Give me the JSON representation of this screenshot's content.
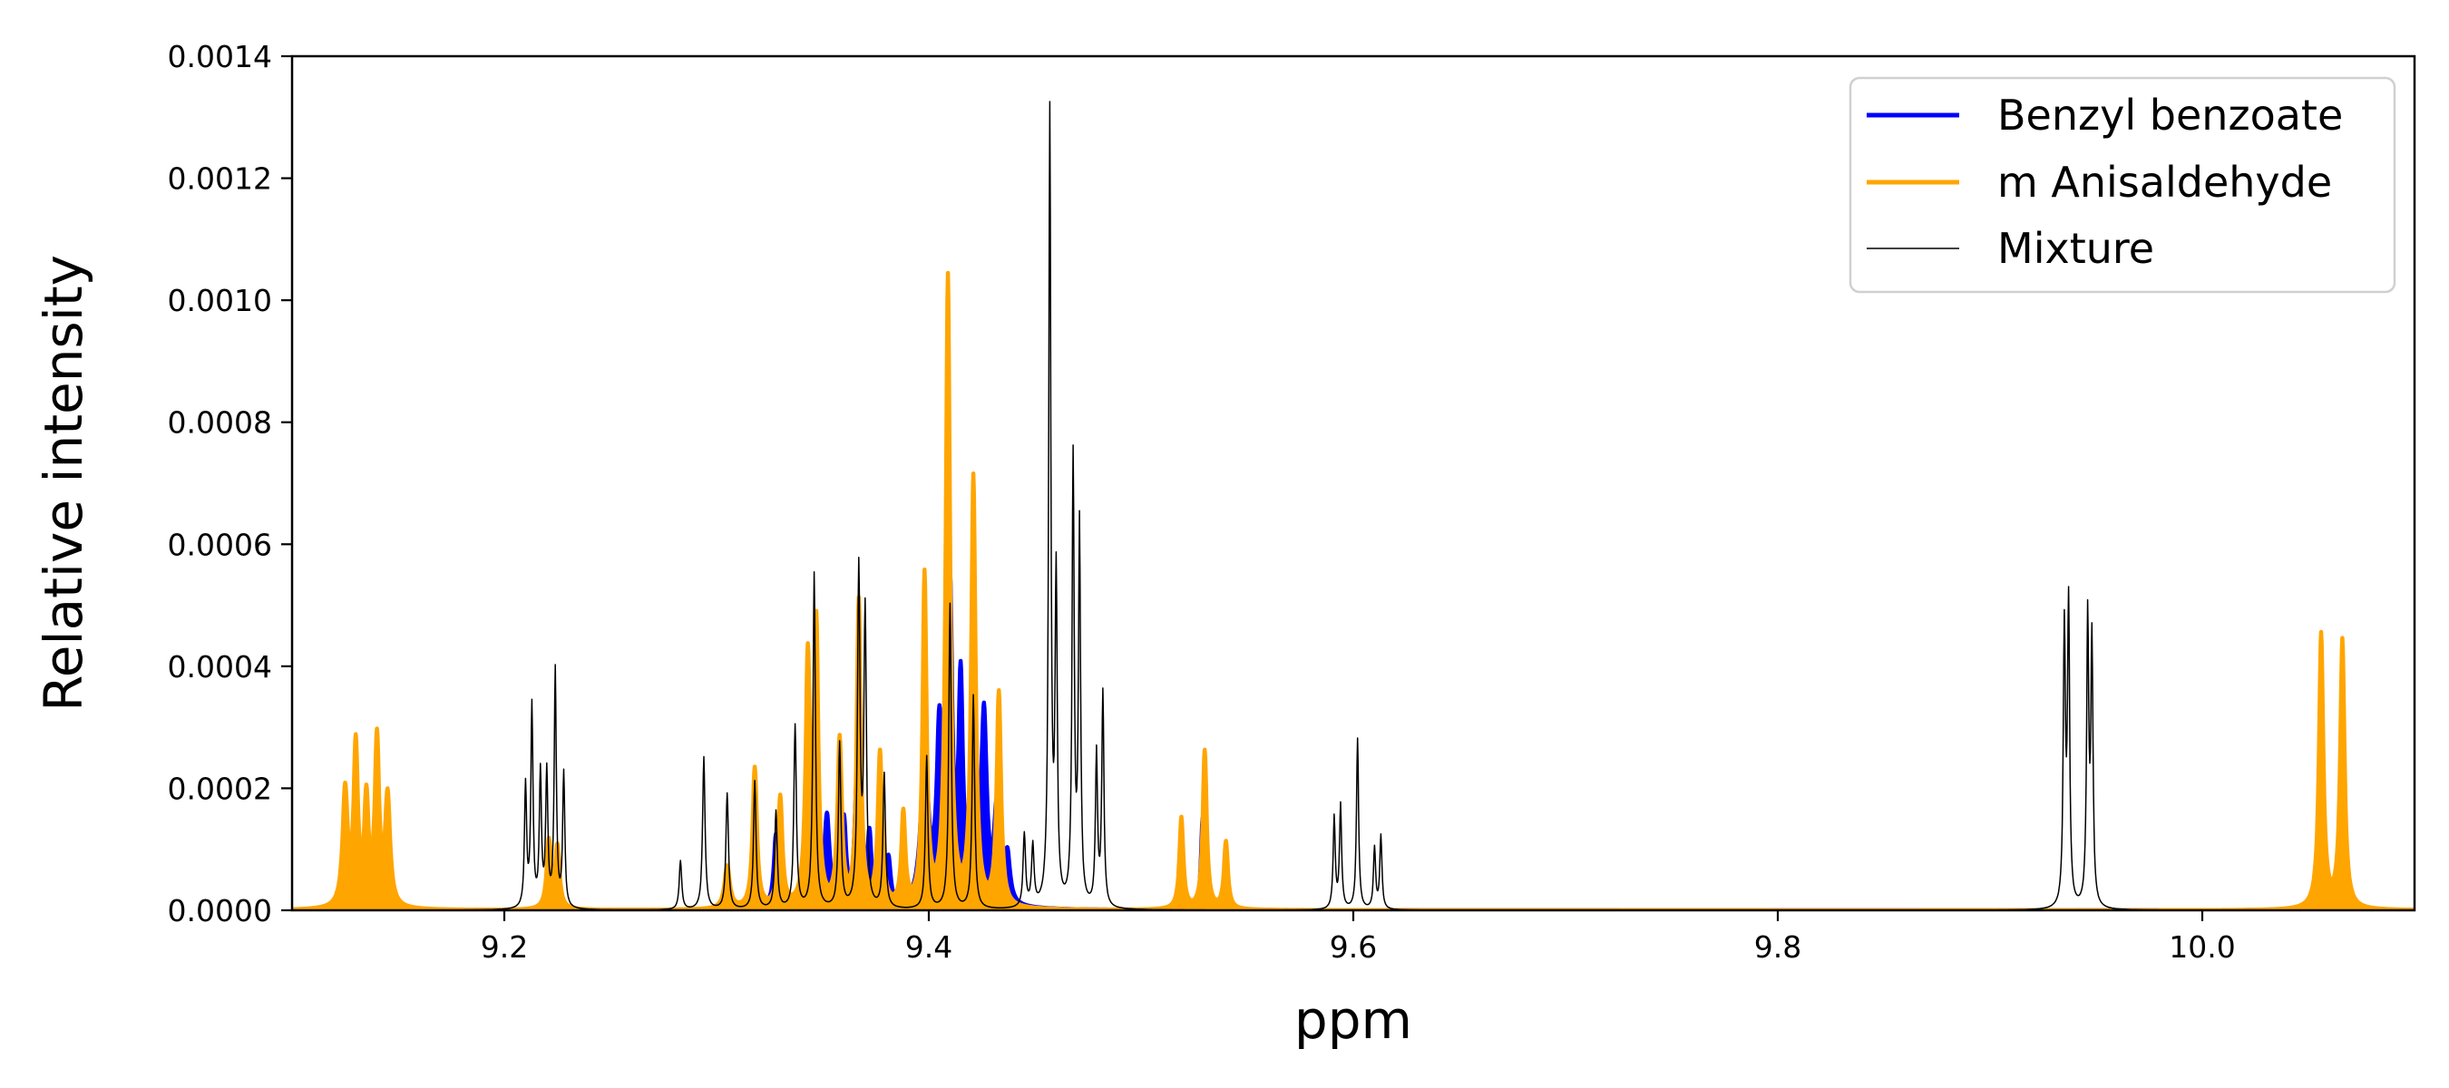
{
  "chart_data": {
    "type": "line",
    "title": "",
    "xlabel": "ppm",
    "ylabel": "Relative intensity",
    "xlim": [
      9.1,
      10.1
    ],
    "ylim": [
      0,
      0.0014
    ],
    "x_axis_direction": "ascending",
    "grid": false,
    "legend_position": "top-right",
    "x_ticks": [
      "9.2",
      "9.4",
      "9.6",
      "9.8",
      "10.0"
    ],
    "x_tick_values": [
      9.2,
      9.4,
      9.6,
      9.8,
      10.0
    ],
    "y_ticks": [
      "0.0000",
      "0.0002",
      "0.0004",
      "0.0006",
      "0.0008",
      "0.0010",
      "0.0012",
      "0.0014"
    ],
    "y_tick_values": [
      0,
      0.0002,
      0.0004,
      0.0006,
      0.0008,
      0.001,
      0.0012,
      0.0014
    ],
    "series": [
      {
        "name": "Benzyl benzoate",
        "color": "#0000ff",
        "filled": true,
        "peaks": [
          [
            9.222,
            2e-05,
            0.0012
          ],
          [
            9.305,
            3e-05,
            0.0015
          ],
          [
            9.318,
            0.00012,
            0.0012
          ],
          [
            9.328,
            0.00012,
            0.0012
          ],
          [
            9.342,
            0.00015,
            0.0015
          ],
          [
            9.352,
            0.00015,
            0.0015
          ],
          [
            9.36,
            0.00014,
            0.0012
          ],
          [
            9.366,
            0.0002,
            0.0012
          ],
          [
            9.372,
            0.00012,
            0.0012
          ],
          [
            9.381,
            8e-05,
            0.0012
          ],
          [
            9.398,
            0.00025,
            0.002
          ],
          [
            9.405,
            0.00028,
            0.0015
          ],
          [
            9.41,
            0.0005,
            0.0012
          ],
          [
            9.415,
            0.00035,
            0.0012
          ],
          [
            9.421,
            0.00037,
            0.0012
          ],
          [
            9.426,
            0.0003,
            0.0015
          ],
          [
            9.432,
            0.00015,
            0.0015
          ],
          [
            9.437,
            8e-05,
            0.0015
          ],
          [
            9.519,
            8e-05,
            0.0009
          ],
          [
            9.529,
            0.00015,
            0.0009
          ],
          [
            9.54,
            8e-05,
            0.0009
          ],
          [
            10.056,
            0.00033,
            0.0011
          ],
          [
            10.066,
            0.00028,
            0.0011
          ]
        ]
      },
      {
        "name": "m Anisaldehyde",
        "color": "#ffa500",
        "filled": true,
        "peaks": [
          [
            9.125,
            0.00019,
            0.0014
          ],
          [
            9.13,
            0.00026,
            0.0012
          ],
          [
            9.135,
            0.00017,
            0.0012
          ],
          [
            9.14,
            0.00027,
            0.0012
          ],
          [
            9.145,
            0.00018,
            0.0014
          ],
          [
            9.221,
            0.00011,
            0.0012
          ],
          [
            9.225,
            0.0001,
            0.0012
          ],
          [
            9.305,
            7e-05,
            0.0015
          ],
          [
            9.318,
            0.00023,
            0.0012
          ],
          [
            9.33,
            0.00018,
            0.0012
          ],
          [
            9.343,
            0.0004,
            0.0012
          ],
          [
            9.347,
            0.00045,
            0.0011
          ],
          [
            9.358,
            0.00027,
            0.0012
          ],
          [
            9.367,
            0.0005,
            0.0011
          ],
          [
            9.377,
            0.00025,
            0.0012
          ],
          [
            9.388,
            0.00015,
            0.0011
          ],
          [
            9.398,
            0.00054,
            0.0011
          ],
          [
            9.409,
            0.00103,
            0.0012
          ],
          [
            9.421,
            0.0007,
            0.0012
          ],
          [
            9.433,
            0.00035,
            0.0012
          ],
          [
            9.519,
            0.00015,
            0.0011
          ],
          [
            9.53,
            0.00026,
            0.0011
          ],
          [
            9.54,
            0.00011,
            0.0011
          ],
          [
            10.056,
            0.00045,
            0.0012
          ],
          [
            10.066,
            0.00044,
            0.0012
          ]
        ]
      },
      {
        "name": "Mixture",
        "color": "#000000",
        "filled": false,
        "peaks": [
          [
            9.21,
            0.0002,
            0.0006
          ],
          [
            9.213,
            0.00033,
            0.0006
          ],
          [
            9.217,
            0.00022,
            0.0006
          ],
          [
            9.22,
            0.00022,
            0.0006
          ],
          [
            9.224,
            0.00039,
            0.0006
          ],
          [
            9.228,
            0.00022,
            0.0006
          ],
          [
            9.283,
            8e-05,
            0.0007
          ],
          [
            9.294,
            0.00025,
            0.0007
          ],
          [
            9.305,
            0.00019,
            0.0007
          ],
          [
            9.318,
            0.00021,
            0.0007
          ],
          [
            9.328,
            0.00016,
            0.0007
          ],
          [
            9.337,
            0.0003,
            0.0007
          ],
          [
            9.346,
            0.00055,
            0.0007
          ],
          [
            9.358,
            0.00027,
            0.0007
          ],
          [
            9.367,
            0.00055,
            0.0007
          ],
          [
            9.37,
            0.00048,
            0.0007
          ],
          [
            9.379,
            0.00022,
            0.0007
          ],
          [
            9.399,
            0.00025,
            0.0007
          ],
          [
            9.41,
            0.0005,
            0.0007
          ],
          [
            9.421,
            0.00035,
            0.0007
          ],
          [
            9.445,
            0.00012,
            0.0007
          ],
          [
            9.449,
            0.0001,
            0.0007
          ],
          [
            9.457,
            0.0013,
            0.0006
          ],
          [
            9.46,
            0.00053,
            0.0006
          ],
          [
            9.468,
            0.00073,
            0.0006
          ],
          [
            9.471,
            0.00062,
            0.0006
          ],
          [
            9.479,
            0.00025,
            0.0006
          ],
          [
            9.482,
            0.00035,
            0.0006
          ],
          [
            9.591,
            0.00015,
            0.0006
          ],
          [
            9.594,
            0.00017,
            0.0006
          ],
          [
            9.602,
            0.00028,
            0.0006
          ],
          [
            9.61,
            0.0001,
            0.0006
          ],
          [
            9.613,
            0.00012,
            0.0006
          ],
          [
            9.935,
            0.00045,
            0.0006
          ],
          [
            9.937,
            0.00049,
            0.0006
          ],
          [
            9.946,
            0.00047,
            0.0006
          ],
          [
            9.948,
            0.00043,
            0.0006
          ]
        ]
      }
    ]
  }
}
